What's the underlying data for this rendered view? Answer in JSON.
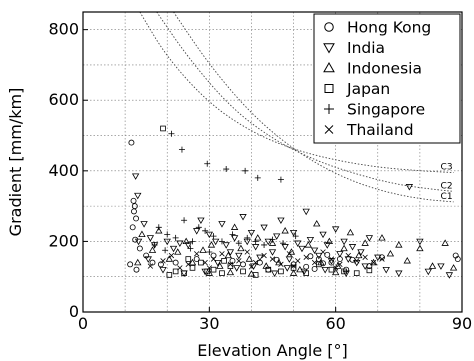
{
  "chart_data": {
    "type": "scatter",
    "title": "",
    "xlabel": "Elevation Angle [°]",
    "ylabel": "Gradient [mm/km]",
    "xlim": [
      0,
      90
    ],
    "ylim": [
      0,
      850
    ],
    "xticks": [
      0,
      30,
      60,
      90
    ],
    "yticks": [
      0,
      200,
      400,
      600,
      800
    ],
    "grid": true,
    "legend_position": "top-right",
    "series": [
      {
        "name": "Hong Kong",
        "marker": "circle",
        "points": [
          [
            11.5,
            480
          ],
          [
            12.0,
            315
          ],
          [
            12.3,
            300
          ],
          [
            12.1,
            285
          ],
          [
            12.6,
            265
          ],
          [
            11.8,
            240
          ],
          [
            12.4,
            205
          ],
          [
            11.2,
            135
          ],
          [
            12.7,
            120
          ],
          [
            13.5,
            180
          ],
          [
            15.0,
            160
          ],
          [
            16.5,
            140
          ],
          [
            18.5,
            135
          ],
          [
            22.0,
            140
          ],
          [
            27.0,
            150
          ],
          [
            31.0,
            160
          ],
          [
            35.5,
            145
          ],
          [
            38.0,
            135
          ],
          [
            42.0,
            140
          ],
          [
            46.0,
            148
          ],
          [
            50.0,
            135
          ],
          [
            53.0,
            128
          ],
          [
            56.0,
            150
          ],
          [
            57.0,
            138
          ],
          [
            58.0,
            162
          ],
          [
            59.0,
            140
          ],
          [
            61.0,
            150
          ],
          [
            62.5,
            120
          ],
          [
            64.0,
            148
          ],
          [
            68.0,
            130
          ],
          [
            71.0,
            155
          ],
          [
            88.5,
            160
          ],
          [
            89.0,
            150
          ],
          [
            44.0,
            120
          ],
          [
            54.0,
            158
          ],
          [
            55.0,
            122
          ]
        ]
      },
      {
        "name": "India",
        "marker": "triangle-down",
        "points": [
          [
            12.5,
            385
          ],
          [
            13.0,
            330
          ],
          [
            14.5,
            250
          ],
          [
            13.2,
            200
          ],
          [
            16.0,
            210
          ],
          [
            17.0,
            190
          ],
          [
            20.0,
            200
          ],
          [
            21.5,
            180
          ],
          [
            23.0,
            195
          ],
          [
            25.0,
            190
          ],
          [
            27.0,
            230
          ],
          [
            28.0,
            260
          ],
          [
            30.0,
            220
          ],
          [
            31.5,
            200
          ],
          [
            33.0,
            250
          ],
          [
            34.0,
            190
          ],
          [
            35.0,
            170
          ],
          [
            36.0,
            210
          ],
          [
            37.0,
            160
          ],
          [
            38.0,
            270
          ],
          [
            39.0,
            200
          ],
          [
            40.0,
            225
          ],
          [
            41.0,
            185
          ],
          [
            42.0,
            155
          ],
          [
            43.0,
            240
          ],
          [
            44.0,
            200
          ],
          [
            45.0,
            170
          ],
          [
            46.0,
            215
          ],
          [
            47.0,
            260
          ],
          [
            48.0,
            185
          ],
          [
            49.0,
            150
          ],
          [
            50.0,
            225
          ],
          [
            51.0,
            195
          ],
          [
            52.0,
            180
          ],
          [
            53.0,
            285
          ],
          [
            54.0,
            205
          ],
          [
            55.0,
            175
          ],
          [
            56.0,
            160
          ],
          [
            57.0,
            220
          ],
          [
            58.0,
            190
          ],
          [
            59.0,
            145
          ],
          [
            60.0,
            235
          ],
          [
            61.0,
            165
          ],
          [
            62.0,
            200
          ],
          [
            63.0,
            150
          ],
          [
            64.0,
            185
          ],
          [
            65.0,
            140
          ],
          [
            66.0,
            170
          ],
          [
            67.0,
            130
          ],
          [
            68.0,
            210
          ],
          [
            70.0,
            155
          ],
          [
            72.0,
            120
          ],
          [
            75.0,
            110
          ],
          [
            77.5,
            355
          ],
          [
            80.0,
            200
          ],
          [
            82.0,
            115
          ],
          [
            85.0,
            130
          ],
          [
            87.0,
            105
          ],
          [
            15.5,
            150
          ],
          [
            19.0,
            120
          ],
          [
            24.0,
            110
          ],
          [
            29.0,
            115
          ],
          [
            32.0,
            140
          ],
          [
            36.5,
            125
          ],
          [
            40.5,
            130
          ],
          [
            45.5,
            110
          ],
          [
            48.5,
            125
          ],
          [
            52.5,
            115
          ],
          [
            57.5,
            120
          ],
          [
            62.5,
            110
          ]
        ]
      },
      {
        "name": "Indonesia",
        "marker": "triangle-up",
        "points": [
          [
            13.0,
            140
          ],
          [
            14.0,
            220
          ],
          [
            16.5,
            175
          ],
          [
            18.0,
            230
          ],
          [
            20.5,
            150
          ],
          [
            22.5,
            170
          ],
          [
            24.5,
            200
          ],
          [
            26.0,
            140
          ],
          [
            28.5,
            175
          ],
          [
            30.5,
            190
          ],
          [
            32.5,
            130
          ],
          [
            34.5,
            160
          ],
          [
            36.0,
            240
          ],
          [
            37.5,
            180
          ],
          [
            39.5,
            150
          ],
          [
            41.5,
            210
          ],
          [
            43.5,
            130
          ],
          [
            45.0,
            195
          ],
          [
            46.5,
            140
          ],
          [
            48.0,
            230
          ],
          [
            49.5,
            170
          ],
          [
            51.5,
            120
          ],
          [
            53.5,
            190
          ],
          [
            55.5,
            250
          ],
          [
            56.5,
            140
          ],
          [
            58.5,
            200
          ],
          [
            60.5,
            130
          ],
          [
            62.0,
            180
          ],
          [
            63.5,
            225
          ],
          [
            65.5,
            160
          ],
          [
            67.0,
            195
          ],
          [
            69.0,
            140
          ],
          [
            71.0,
            210
          ],
          [
            73.0,
            165
          ],
          [
            75.0,
            190
          ],
          [
            77.0,
            145
          ],
          [
            80.0,
            180
          ],
          [
            83.0,
            130
          ],
          [
            86.0,
            195
          ],
          [
            88.0,
            125
          ],
          [
            30.0,
            110
          ],
          [
            35.0,
            112
          ],
          [
            40.0,
            108
          ],
          [
            50.0,
            110
          ],
          [
            60.0,
            112
          ]
        ]
      },
      {
        "name": "Japan",
        "marker": "square",
        "points": [
          [
            19.0,
            520
          ],
          [
            20.5,
            105
          ],
          [
            22.0,
            115
          ],
          [
            24.0,
            110
          ],
          [
            26.0,
            125
          ],
          [
            28.0,
            140
          ],
          [
            29.5,
            115
          ],
          [
            31.0,
            120
          ],
          [
            33.0,
            110
          ],
          [
            35.0,
            130
          ],
          [
            38.0,
            115
          ],
          [
            41.0,
            105
          ],
          [
            44.0,
            120
          ],
          [
            47.0,
            115
          ],
          [
            50.0,
            125
          ],
          [
            53.0,
            110
          ],
          [
            56.0,
            135
          ],
          [
            59.0,
            120
          ],
          [
            62.0,
            115
          ],
          [
            65.0,
            110
          ],
          [
            68.0,
            118
          ],
          [
            25.0,
            150
          ],
          [
            33.5,
            145
          ]
        ]
      },
      {
        "name": "Singapore",
        "marker": "plus",
        "points": [
          [
            21.0,
            505
          ],
          [
            23.5,
            460
          ],
          [
            29.5,
            420
          ],
          [
            34.0,
            405
          ],
          [
            38.5,
            400
          ],
          [
            41.5,
            380
          ],
          [
            47.0,
            375
          ],
          [
            18.0,
            240
          ],
          [
            20.0,
            220
          ],
          [
            22.0,
            210
          ],
          [
            24.0,
            260
          ],
          [
            26.0,
            200
          ],
          [
            27.5,
            240
          ],
          [
            29.0,
            230
          ],
          [
            31.0,
            215
          ],
          [
            33.0,
            200
          ],
          [
            35.5,
            220
          ],
          [
            37.0,
            195
          ],
          [
            39.0,
            210
          ],
          [
            41.0,
            200
          ],
          [
            43.0,
            190
          ],
          [
            45.0,
            205
          ],
          [
            47.5,
            195
          ],
          [
            50.5,
            215
          ],
          [
            17.0,
            190
          ],
          [
            19.5,
            175
          ],
          [
            25.5,
            180
          ],
          [
            30.0,
            170
          ]
        ]
      },
      {
        "name": "Thailand",
        "marker": "cross",
        "points": [
          [
            16.0,
            130
          ],
          [
            19.0,
            145
          ],
          [
            21.0,
            160
          ],
          [
            23.0,
            125
          ],
          [
            25.0,
            135
          ],
          [
            27.0,
            165
          ],
          [
            29.0,
            140
          ],
          [
            31.0,
            150
          ],
          [
            33.0,
            165
          ],
          [
            35.0,
            135
          ],
          [
            37.0,
            145
          ],
          [
            39.0,
            170
          ],
          [
            41.0,
            140
          ],
          [
            43.0,
            160
          ],
          [
            45.0,
            150
          ],
          [
            47.0,
            135
          ],
          [
            49.0,
            165
          ],
          [
            51.0,
            145
          ],
          [
            53.0,
            155
          ],
          [
            55.0,
            140
          ],
          [
            57.0,
            170
          ],
          [
            59.0,
            150
          ],
          [
            61.0,
            135
          ],
          [
            63.0,
            160
          ],
          [
            65.0,
            145
          ],
          [
            67.0,
            155
          ],
          [
            69.0,
            140
          ],
          [
            71.0,
            150
          ],
          [
            30.0,
            125
          ],
          [
            40.0,
            128
          ],
          [
            50.0,
            130
          ],
          [
            60.0,
            125
          ]
        ]
      }
    ],
    "curves": [
      {
        "label": "C3",
        "points": [
          [
            13.5,
            850
          ],
          [
            20,
            720
          ],
          [
            30,
            590
          ],
          [
            40,
            510
          ],
          [
            50,
            460
          ],
          [
            60,
            430
          ],
          [
            70,
            410
          ],
          [
            80,
            400
          ],
          [
            88,
            395
          ]
        ]
      },
      {
        "label": "C2",
        "points": [
          [
            17.5,
            850
          ],
          [
            25,
            720
          ],
          [
            35,
            580
          ],
          [
            45,
            490
          ],
          [
            55,
            430
          ],
          [
            65,
            390
          ],
          [
            75,
            360
          ],
          [
            85,
            345
          ],
          [
            88,
            342
          ]
        ]
      },
      {
        "label": "C1",
        "points": [
          [
            21.5,
            850
          ],
          [
            30,
            700
          ],
          [
            40,
            560
          ],
          [
            50,
            460
          ],
          [
            60,
            390
          ],
          [
            70,
            345
          ],
          [
            80,
            320
          ],
          [
            88,
            312
          ]
        ]
      }
    ]
  }
}
